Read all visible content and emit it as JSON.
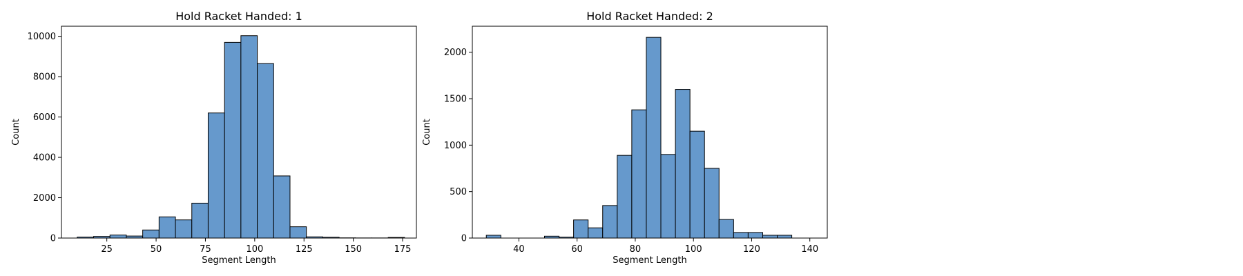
{
  "chart_data": [
    {
      "type": "bar",
      "title": "Hold Racket Handed: 1",
      "xlabel": "Segment Length",
      "ylabel": "Count",
      "bar_color": "#6699cc",
      "xlim": [
        2,
        182
      ],
      "ylim": [
        0,
        10500
      ],
      "xticks": [
        25,
        50,
        75,
        100,
        125,
        150,
        175
      ],
      "yticks": [
        0,
        2000,
        4000,
        6000,
        8000,
        10000
      ],
      "bins": [
        {
          "x0": 10,
          "x1": 18.3,
          "value": 50
        },
        {
          "x0": 18.3,
          "x1": 26.6,
          "value": 80
        },
        {
          "x0": 26.6,
          "x1": 34.9,
          "value": 150
        },
        {
          "x0": 34.9,
          "x1": 43.2,
          "value": 100
        },
        {
          "x0": 43.2,
          "x1": 51.5,
          "value": 400
        },
        {
          "x0": 51.5,
          "x1": 59.8,
          "value": 1050
        },
        {
          "x0": 59.8,
          "x1": 68.1,
          "value": 900
        },
        {
          "x0": 68.1,
          "x1": 76.4,
          "value": 1730
        },
        {
          "x0": 76.4,
          "x1": 84.7,
          "value": 6200
        },
        {
          "x0": 84.7,
          "x1": 93.0,
          "value": 9700
        },
        {
          "x0": 93.0,
          "x1": 101.3,
          "value": 10030
        },
        {
          "x0": 101.3,
          "x1": 109.6,
          "value": 8650
        },
        {
          "x0": 109.6,
          "x1": 117.9,
          "value": 3080
        },
        {
          "x0": 117.9,
          "x1": 126.2,
          "value": 560
        },
        {
          "x0": 126.2,
          "x1": 134.5,
          "value": 60
        },
        {
          "x0": 134.5,
          "x1": 142.8,
          "value": 40
        },
        {
          "x0": 142.8,
          "x1": 151.1,
          "value": 10
        },
        {
          "x0": 151.1,
          "x1": 159.4,
          "value": 5
        },
        {
          "x0": 159.4,
          "x1": 167.7,
          "value": 5
        },
        {
          "x0": 167.7,
          "x1": 176.0,
          "value": 30
        }
      ]
    },
    {
      "type": "bar",
      "title": "Hold Racket Handed: 2",
      "xlabel": "Segment Length",
      "ylabel": "Count",
      "bar_color": "#6699cc",
      "xlim": [
        24,
        146
      ],
      "ylim": [
        0,
        2280
      ],
      "xticks": [
        40,
        60,
        80,
        100,
        120,
        140
      ],
      "yticks": [
        0,
        500,
        1000,
        1500,
        2000
      ],
      "bins": [
        {
          "x0": 28.8,
          "x1": 33.8,
          "value": 30
        },
        {
          "x0": 33.8,
          "x1": 38.8,
          "value": 0
        },
        {
          "x0": 38.8,
          "x1": 43.8,
          "value": 0
        },
        {
          "x0": 43.8,
          "x1": 48.8,
          "value": 0
        },
        {
          "x0": 48.8,
          "x1": 53.8,
          "value": 20
        },
        {
          "x0": 53.8,
          "x1": 58.8,
          "value": 10
        },
        {
          "x0": 58.8,
          "x1": 63.8,
          "value": 195
        },
        {
          "x0": 63.8,
          "x1": 68.8,
          "value": 110
        },
        {
          "x0": 68.8,
          "x1": 73.8,
          "value": 350
        },
        {
          "x0": 73.8,
          "x1": 78.8,
          "value": 890
        },
        {
          "x0": 78.8,
          "x1": 83.8,
          "value": 1380
        },
        {
          "x0": 83.8,
          "x1": 88.8,
          "value": 2160
        },
        {
          "x0": 88.8,
          "x1": 93.8,
          "value": 900
        },
        {
          "x0": 93.8,
          "x1": 98.8,
          "value": 1600
        },
        {
          "x0": 98.8,
          "x1": 103.8,
          "value": 1150
        },
        {
          "x0": 103.8,
          "x1": 108.8,
          "value": 750
        },
        {
          "x0": 108.8,
          "x1": 113.8,
          "value": 200
        },
        {
          "x0": 113.8,
          "x1": 118.8,
          "value": 60
        },
        {
          "x0": 118.8,
          "x1": 123.8,
          "value": 60
        },
        {
          "x0": 123.8,
          "x1": 128.8,
          "value": 30
        },
        {
          "x0": 128.8,
          "x1": 133.8,
          "value": 30
        }
      ]
    }
  ]
}
